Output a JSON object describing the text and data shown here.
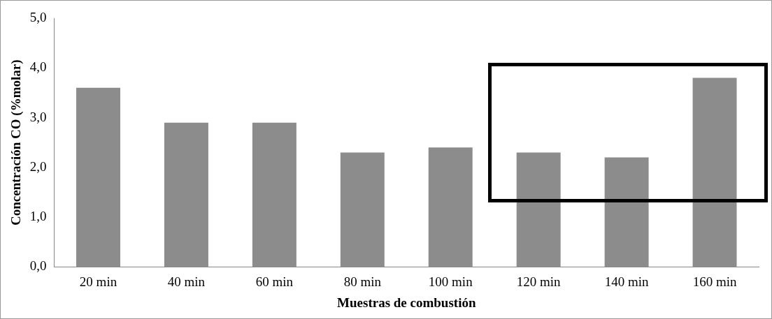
{
  "chart_data": {
    "type": "bar",
    "xlabel": "Muestras de combustión",
    "ylabel": "Concentración CO (%molar)",
    "categories": [
      "20 min",
      "40 min",
      "60 min",
      "80 min",
      "100 min",
      "120 min",
      "140 min",
      "160 min"
    ],
    "values": [
      3.6,
      2.9,
      2.9,
      2.3,
      2.4,
      2.3,
      2.2,
      3.8
    ],
    "color": "#8c8c8c",
    "ylim": [
      0,
      5
    ],
    "yticks": [
      {
        "value": 0,
        "label": "0,0"
      },
      {
        "value": 1,
        "label": "1,0"
      },
      {
        "value": 2,
        "label": "2,0"
      },
      {
        "value": 3,
        "label": "3,0"
      },
      {
        "value": 4,
        "label": "4,0"
      },
      {
        "value": 5,
        "label": "5,0"
      }
    ],
    "grid": false,
    "legend": false
  }
}
